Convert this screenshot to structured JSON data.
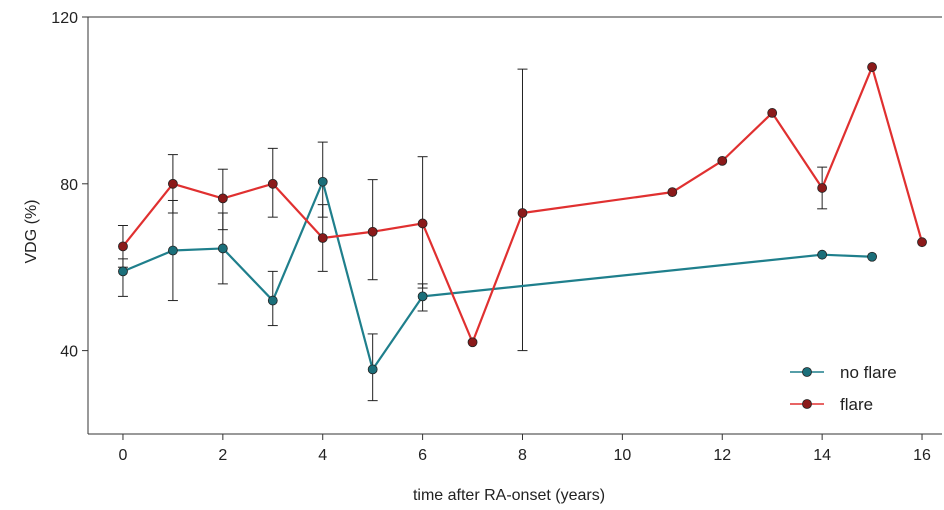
{
  "chart_data": {
    "type": "line",
    "xlabel": "time after RA-onset (years)",
    "ylabel": "VDG (%)",
    "xlim": [
      -0.7,
      16.4
    ],
    "ylim": [
      20,
      120
    ],
    "xticks": [
      0,
      2,
      4,
      6,
      8,
      10,
      12,
      14,
      16
    ],
    "yticks": [
      40,
      80,
      120
    ],
    "grid": false,
    "legend_position": "bottom-right",
    "series": [
      {
        "name": "no flare",
        "color": "#1f7f8c",
        "points": [
          {
            "x": 0,
            "y": 59,
            "err": [
              53,
              62
            ]
          },
          {
            "x": 1,
            "y": 64,
            "err": [
              52,
              76
            ]
          },
          {
            "x": 2,
            "y": 64.5,
            "err": [
              56,
              73
            ]
          },
          {
            "x": 3,
            "y": 52,
            "err": [
              46,
              59
            ]
          },
          {
            "x": 4,
            "y": 80.5,
            "err": [
              72,
              90
            ]
          },
          {
            "x": 5,
            "y": 35.5,
            "err": [
              28,
              44
            ]
          },
          {
            "x": 6,
            "y": 53,
            "err": [
              49.5,
              56
            ]
          },
          {
            "x": 14,
            "y": 63
          },
          {
            "x": 15,
            "y": 62.5
          }
        ]
      },
      {
        "name": "flare",
        "color": "#e03030",
        "points": [
          {
            "x": 0,
            "y": 65,
            "err": [
              60,
              70
            ]
          },
          {
            "x": 1,
            "y": 80,
            "err": [
              73,
              87
            ]
          },
          {
            "x": 2,
            "y": 76.5,
            "err": [
              69,
              83.5
            ]
          },
          {
            "x": 3,
            "y": 80,
            "err": [
              72,
              88.5
            ]
          },
          {
            "x": 4,
            "y": 67,
            "err": [
              59,
              75
            ]
          },
          {
            "x": 5,
            "y": 68.5,
            "err": [
              57,
              81
            ]
          },
          {
            "x": 6,
            "y": 70.5,
            "err": [
              55,
              86.5
            ]
          },
          {
            "x": 7,
            "y": 42
          },
          {
            "x": 8,
            "y": 73,
            "err": [
              40,
              107.5
            ]
          },
          {
            "x": 11,
            "y": 78
          },
          {
            "x": 12,
            "y": 85.5
          },
          {
            "x": 13,
            "y": 97
          },
          {
            "x": 14,
            "y": 79,
            "err": [
              74,
              84
            ]
          },
          {
            "x": 15,
            "y": 108
          },
          {
            "x": 16,
            "y": 66
          }
        ]
      }
    ]
  }
}
